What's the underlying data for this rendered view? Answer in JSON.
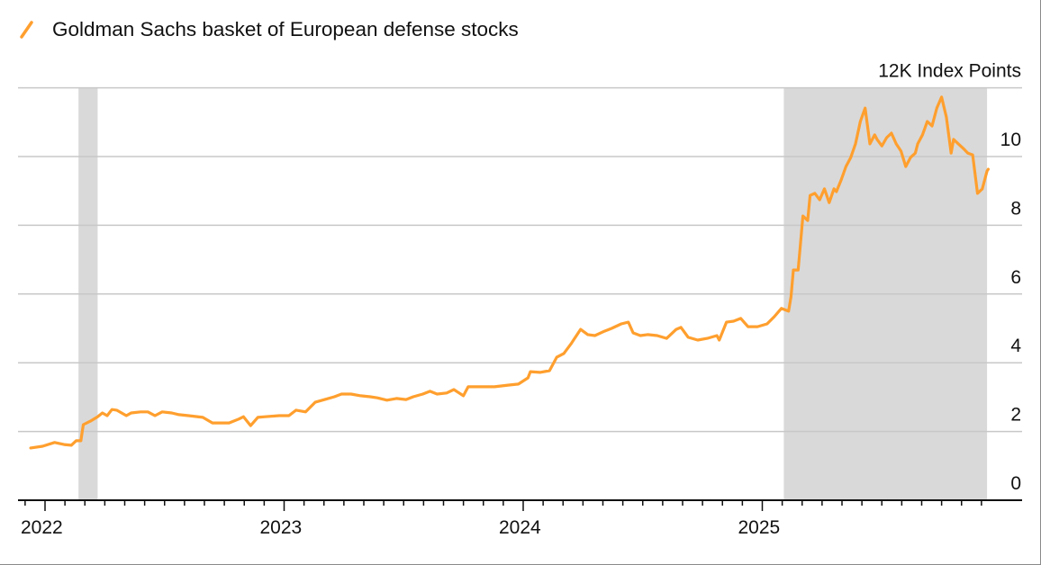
{
  "chart_data": {
    "type": "line",
    "title": "",
    "legend": [
      {
        "name": "Goldman Sachs basket of European defense stocks",
        "color": "#ff9f2e"
      }
    ],
    "legend_placement": "top-left",
    "ylabel": "12K Index Points",
    "ylim": [
      0,
      12
    ],
    "yticks": [
      0,
      2,
      4,
      6,
      8,
      10,
      12
    ],
    "ytick_labels": [
      "0",
      "2",
      "4",
      "6",
      "8",
      "10",
      "12K Index Points"
    ],
    "xlim": [
      2021.89,
      2026.09
    ],
    "xticks": [
      2022,
      2023,
      2024,
      2025
    ],
    "xtick_labels": [
      "2022",
      "2023",
      "2024",
      "2025"
    ],
    "grid": "horizontal",
    "shaded_periods": [
      [
        2022.14,
        2022.22
      ],
      [
        2025.09,
        2025.94
      ]
    ],
    "shade_color": "#d9d9d9",
    "series": [
      {
        "name": "Goldman Sachs basket of European defense stocks",
        "color": "#ff9f2e",
        "x": [
          2021.94,
          2021.99,
          2022.04,
          2022.08,
          2022.11,
          2022.13,
          2022.15,
          2022.16,
          2022.19,
          2022.22,
          2022.24,
          2022.26,
          2022.28,
          2022.3,
          2022.34,
          2022.36,
          2022.4,
          2022.43,
          2022.46,
          2022.49,
          2022.53,
          2022.56,
          2022.6,
          2022.66,
          2022.7,
          2022.73,
          2022.77,
          2022.81,
          2022.83,
          2022.86,
          2022.89,
          2022.92,
          2022.98,
          2023.02,
          2023.05,
          2023.09,
          2023.13,
          2023.17,
          2023.21,
          2023.24,
          2023.28,
          2023.32,
          2023.36,
          2023.39,
          2023.43,
          2023.47,
          2023.51,
          2023.54,
          2023.58,
          2023.61,
          2023.64,
          2023.68,
          2023.71,
          2023.75,
          2023.77,
          2023.81,
          2023.85,
          2023.88,
          2023.94,
          2023.98,
          2024.02,
          2024.03,
          2024.07,
          2024.11,
          2024.14,
          2024.17,
          2024.2,
          2024.24,
          2024.27,
          2024.3,
          2024.34,
          2024.37,
          2024.41,
          2024.44,
          2024.46,
          2024.49,
          2024.52,
          2024.56,
          2024.6,
          2024.64,
          2024.66,
          2024.69,
          2024.73,
          2024.77,
          2024.81,
          2024.82,
          2024.85,
          2024.88,
          2024.91,
          2024.94,
          2024.98,
          2025.02,
          2025.05,
          2025.08,
          2025.11,
          2025.12,
          2025.13,
          2025.15,
          2025.16,
          2025.17,
          2025.19,
          2025.2,
          2025.22,
          2025.24,
          2025.26,
          2025.28,
          2025.3,
          2025.31,
          2025.33,
          2025.35,
          2025.37,
          2025.39,
          2025.41,
          2025.43,
          2025.45,
          2025.47,
          2025.48,
          2025.5,
          2025.52,
          2025.54,
          2025.56,
          2025.58,
          2025.6,
          2025.62,
          2025.64,
          2025.65,
          2025.67,
          2025.69,
          2025.71,
          2025.73,
          2025.75,
          2025.77,
          2025.79,
          2025.8,
          2025.82,
          2025.84,
          2025.86,
          2025.88,
          2025.9,
          2025.92,
          2025.94,
          2025.945
        ],
        "y": [
          1.52,
          1.57,
          1.68,
          1.62,
          1.6,
          1.73,
          1.73,
          2.2,
          2.3,
          2.43,
          2.54,
          2.46,
          2.64,
          2.62,
          2.46,
          2.54,
          2.57,
          2.57,
          2.46,
          2.57,
          2.54,
          2.49,
          2.46,
          2.41,
          2.25,
          2.25,
          2.25,
          2.36,
          2.43,
          2.17,
          2.41,
          2.43,
          2.46,
          2.46,
          2.62,
          2.57,
          2.85,
          2.93,
          3.01,
          3.09,
          3.09,
          3.04,
          3.01,
          2.98,
          2.91,
          2.96,
          2.93,
          3.01,
          3.09,
          3.17,
          3.09,
          3.12,
          3.22,
          3.04,
          3.3,
          3.3,
          3.3,
          3.3,
          3.35,
          3.38,
          3.56,
          3.74,
          3.72,
          3.77,
          4.16,
          4.27,
          4.55,
          4.97,
          4.82,
          4.79,
          4.92,
          5.0,
          5.13,
          5.18,
          4.87,
          4.79,
          4.82,
          4.79,
          4.71,
          4.97,
          5.03,
          4.74,
          4.66,
          4.71,
          4.79,
          4.66,
          5.18,
          5.21,
          5.29,
          5.05,
          5.05,
          5.13,
          5.34,
          5.58,
          5.5,
          5.92,
          6.7,
          6.7,
          7.49,
          8.27,
          8.14,
          8.87,
          8.93,
          8.74,
          9.06,
          8.66,
          9.06,
          8.98,
          9.32,
          9.71,
          9.97,
          10.37,
          11.02,
          11.41,
          10.37,
          10.63,
          10.5,
          10.31,
          10.55,
          10.68,
          10.37,
          10.16,
          9.71,
          9.97,
          10.1,
          10.37,
          10.63,
          11.02,
          10.89,
          11.41,
          11.73,
          11.15,
          10.1,
          10.5,
          10.37,
          10.24,
          10.1,
          10.05,
          8.93,
          9.06,
          9.58,
          9.63
        ]
      }
    ]
  }
}
